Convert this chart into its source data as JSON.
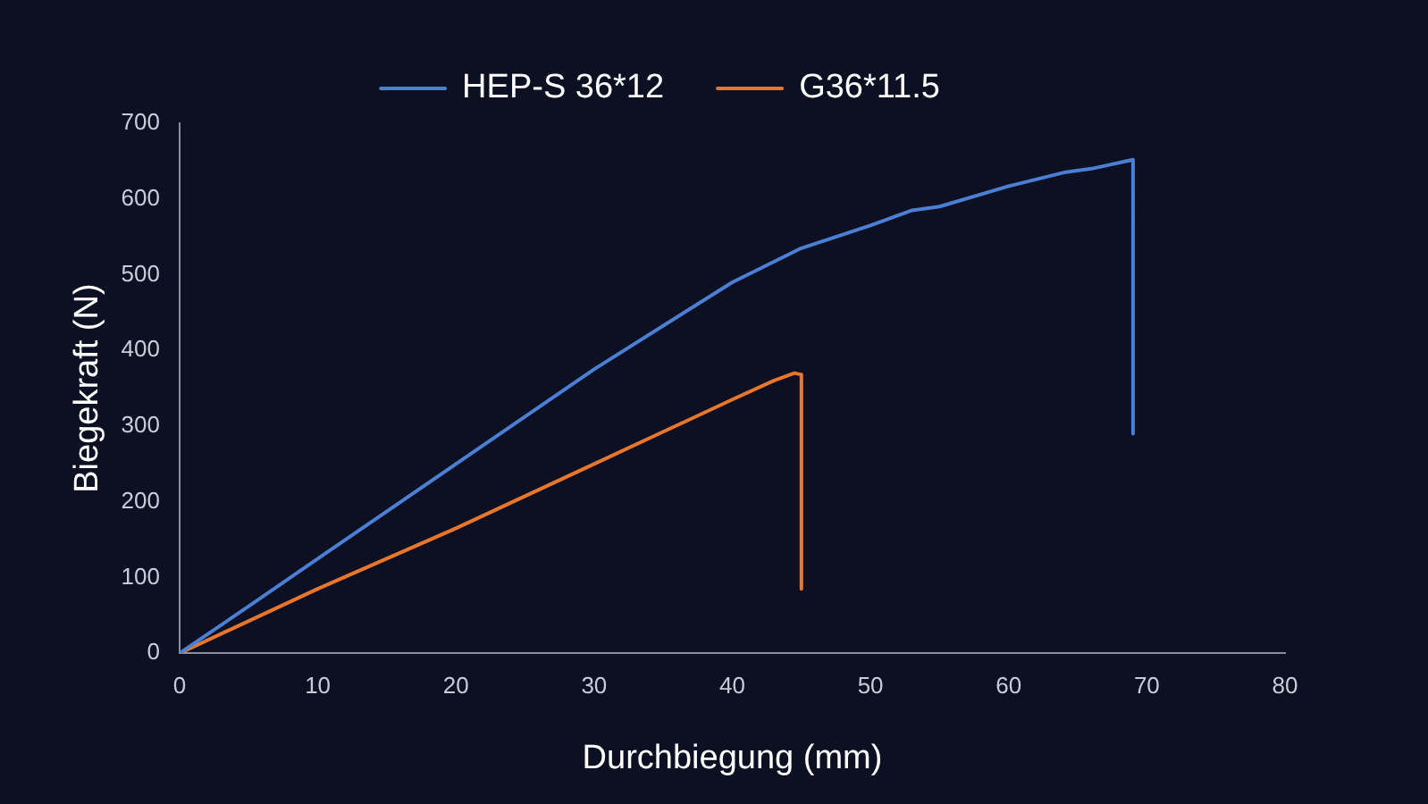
{
  "chart_data": {
    "type": "line",
    "xlabel": "Durchbiegung (mm)",
    "ylabel": "Biegekraft (N)",
    "xlim": [
      0,
      80
    ],
    "xticks": [
      0,
      10,
      20,
      30,
      40,
      50,
      60,
      70,
      80
    ],
    "ylim": [
      0,
      700
    ],
    "yticks": [
      0,
      100,
      200,
      300,
      400,
      500,
      600,
      700
    ],
    "grid": false,
    "legend": "top",
    "marker": "none",
    "line_style": "solid",
    "series": [
      {
        "name": "HEP-S 36*12",
        "color": "#4a7fd4",
        "x": [
          0,
          5,
          10,
          20,
          30,
          40,
          45,
          50,
          53,
          55,
          60,
          64,
          66,
          69,
          69
        ],
        "values": [
          0,
          62,
          125,
          250,
          375,
          490,
          535,
          565,
          585,
          590,
          617,
          635,
          640,
          652,
          290
        ]
      },
      {
        "name": "G36*11.5",
        "color": "#e8762b",
        "x": [
          0,
          10,
          20,
          30,
          40,
          43,
          44.5,
          45,
          45
        ],
        "values": [
          0,
          85,
          165,
          250,
          335,
          360,
          370,
          368,
          85
        ]
      }
    ]
  }
}
